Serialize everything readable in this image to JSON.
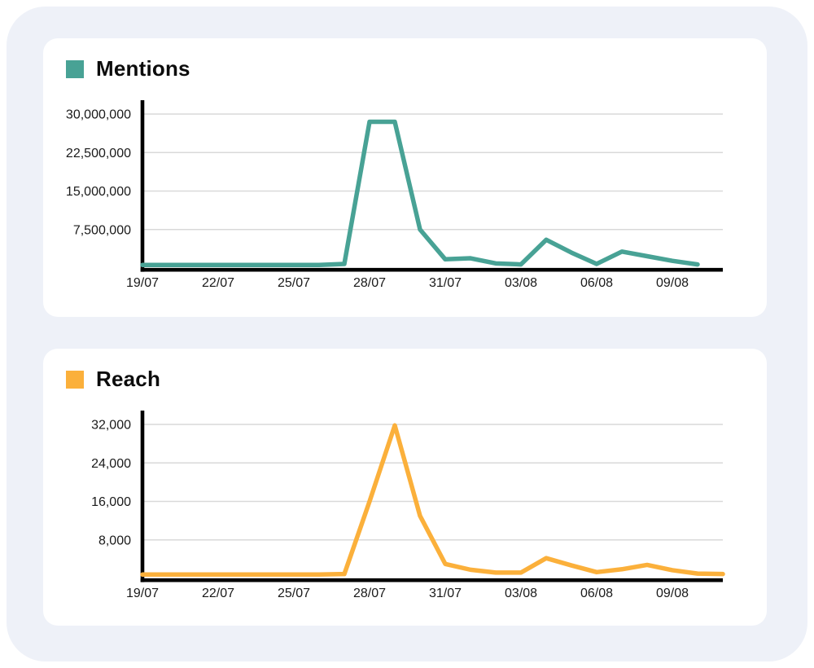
{
  "page": {
    "background": "#ffffff",
    "panel_background": "#eef1f8",
    "card_background": "#ffffff"
  },
  "charts": [
    {
      "legend": {
        "label": "Mentions",
        "color": "#48A295"
      },
      "chart_data": {
        "type": "line",
        "series_name": "mentions-series-line",
        "x": [
          "19/07",
          "20/07",
          "21/07",
          "22/07",
          "23/07",
          "24/07",
          "25/07",
          "26/07",
          "27/07",
          "28/07",
          "29/07",
          "30/07",
          "31/07",
          "01/08",
          "02/08",
          "03/08",
          "04/08",
          "05/08",
          "06/08",
          "07/08",
          "08/08",
          "09/08",
          "10/08"
        ],
        "values": [
          600000,
          600000,
          600000,
          600000,
          600000,
          600000,
          600000,
          600000,
          800000,
          28500000,
          28500000,
          7500000,
          1700000,
          1900000,
          900000,
          700000,
          5500000,
          3000000,
          800000,
          3200000,
          2300000,
          1400000,
          700000
        ],
        "x_tick_interval": 3,
        "x_tick_labels": [
          "19/07",
          "22/07",
          "25/07",
          "28/07",
          "31/07",
          "03/08",
          "06/08",
          "09/08"
        ],
        "y_ticks": [
          {
            "value": 7500000,
            "label": "7,500,000"
          },
          {
            "value": 15000000,
            "label": "15,000,000"
          },
          {
            "value": 22500000,
            "label": "22,500,000"
          },
          {
            "value": 30000000,
            "label": "30,000,000"
          }
        ],
        "ylim": [
          0,
          30000000
        ],
        "grid": true,
        "grid_color": "#d9d9d9",
        "axis_color": "#000000",
        "line_color": "#48A295",
        "legend_position": "top-left"
      }
    },
    {
      "legend": {
        "label": "Reach",
        "color": "#FBB03B"
      },
      "chart_data": {
        "type": "line",
        "series_name": "reach-series-line",
        "x": [
          "19/07",
          "20/07",
          "21/07",
          "22/07",
          "23/07",
          "24/07",
          "25/07",
          "26/07",
          "27/07",
          "28/07",
          "29/07",
          "30/07",
          "31/07",
          "01/08",
          "02/08",
          "03/08",
          "04/08",
          "05/08",
          "06/08",
          "07/08",
          "08/08",
          "09/08",
          "10/08",
          "11/08"
        ],
        "values": [
          800,
          800,
          800,
          800,
          800,
          800,
          800,
          800,
          900,
          16000,
          31800,
          13000,
          3000,
          1800,
          1200,
          1200,
          4200,
          2700,
          1300,
          1900,
          2800,
          1700,
          1000,
          900
        ],
        "x_tick_interval": 3,
        "x_tick_labels": [
          "19/07",
          "22/07",
          "25/07",
          "28/07",
          "31/07",
          "03/08",
          "06/08",
          "09/08"
        ],
        "y_ticks": [
          {
            "value": 8000,
            "label": "8,000"
          },
          {
            "value": 16000,
            "label": "16,000"
          },
          {
            "value": 24000,
            "label": "24,000"
          },
          {
            "value": 32000,
            "label": "32,000"
          }
        ],
        "ylim": [
          0,
          32000
        ],
        "grid": true,
        "grid_color": "#d9d9d9",
        "axis_color": "#000000",
        "line_color": "#FBB03B",
        "legend_position": "top-left"
      }
    }
  ]
}
